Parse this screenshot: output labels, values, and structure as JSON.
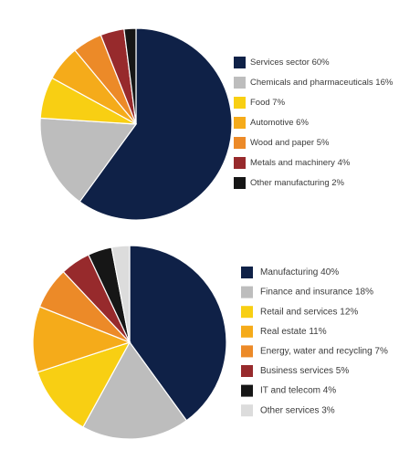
{
  "chart_data": [
    {
      "type": "pie",
      "legend_position": "right",
      "start_angle_deg": 0,
      "direction": "clockwise",
      "slices": [
        {
          "label": "Services sector 60%",
          "value": 60,
          "color": "#0f2147"
        },
        {
          "label": "Chemicals and pharmaceuticals 16%",
          "value": 16,
          "color": "#bdbdbd"
        },
        {
          "label": "Food 7%",
          "value": 7,
          "color": "#f8cf13"
        },
        {
          "label": "Automotive 6%",
          "value": 6,
          "color": "#f5ab1a"
        },
        {
          "label": "Wood and paper 5%",
          "value": 5,
          "color": "#ec8a28"
        },
        {
          "label": "Metals and machinery 4%",
          "value": 4,
          "color": "#972a2c"
        },
        {
          "label": "Other manufacturing 2%",
          "value": 2,
          "color": "#161616"
        }
      ]
    },
    {
      "type": "pie",
      "legend_position": "right",
      "start_angle_deg": 0,
      "direction": "clockwise",
      "slices": [
        {
          "label": "Manufacturing 40%",
          "value": 40,
          "color": "#0f2147"
        },
        {
          "label": "Finance and insurance 18%",
          "value": 18,
          "color": "#bdbdbd"
        },
        {
          "label": "Retail and services 12%",
          "value": 12,
          "color": "#f8cf13"
        },
        {
          "label": "Real estate 11%",
          "value": 11,
          "color": "#f5ab1a"
        },
        {
          "label": "Energy, water and recycling 7%",
          "value": 7,
          "color": "#ec8a28"
        },
        {
          "label": "Business services 5%",
          "value": 5,
          "color": "#972a2c"
        },
        {
          "label": "IT and telecom 4%",
          "value": 4,
          "color": "#161616"
        },
        {
          "label": "Other services 3%",
          "value": 3,
          "color": "#dcdcdc"
        }
      ]
    }
  ]
}
